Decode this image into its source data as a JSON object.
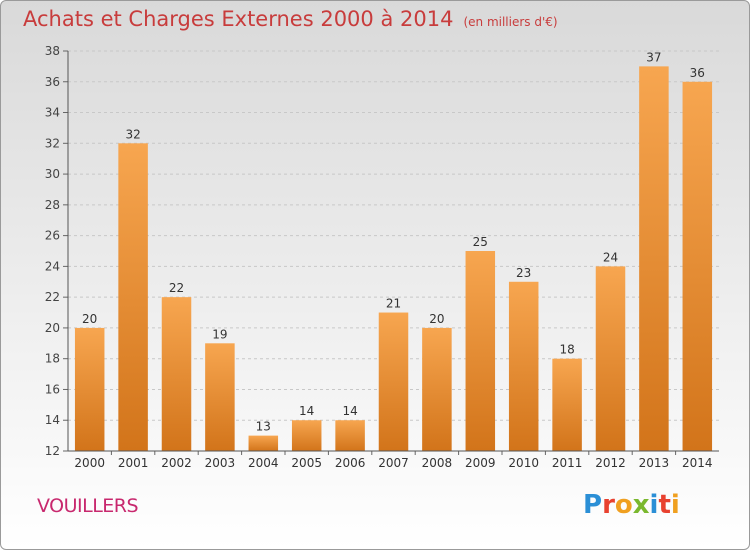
{
  "header": {
    "title": "Achats et Charges Externes 2000 à 2014",
    "unit": "(en milliers d'€)"
  },
  "commune": "VOUILLERS",
  "logo": {
    "text": "Proxiti",
    "colors": [
      "#2b8fd6",
      "#e8412f",
      "#f0a020",
      "#7ab82e",
      "#2b8fd6",
      "#e8412f",
      "#f0a020"
    ]
  },
  "chart_data": {
    "type": "bar",
    "categories": [
      "2000",
      "2001",
      "2002",
      "2003",
      "2004",
      "2005",
      "2006",
      "2007",
      "2008",
      "2009",
      "2010",
      "2011",
      "2012",
      "2013",
      "2014"
    ],
    "values": [
      20,
      32,
      22,
      19,
      13,
      14,
      14,
      21,
      20,
      25,
      23,
      18,
      24,
      37,
      36
    ],
    "ylim": [
      12,
      38
    ],
    "yticks": [
      12,
      14,
      16,
      18,
      20,
      22,
      24,
      26,
      28,
      30,
      32,
      34,
      36,
      38
    ],
    "bar_color_top": "#f7a650",
    "bar_color_bottom": "#d2741a",
    "grid": true,
    "legend": "none"
  }
}
